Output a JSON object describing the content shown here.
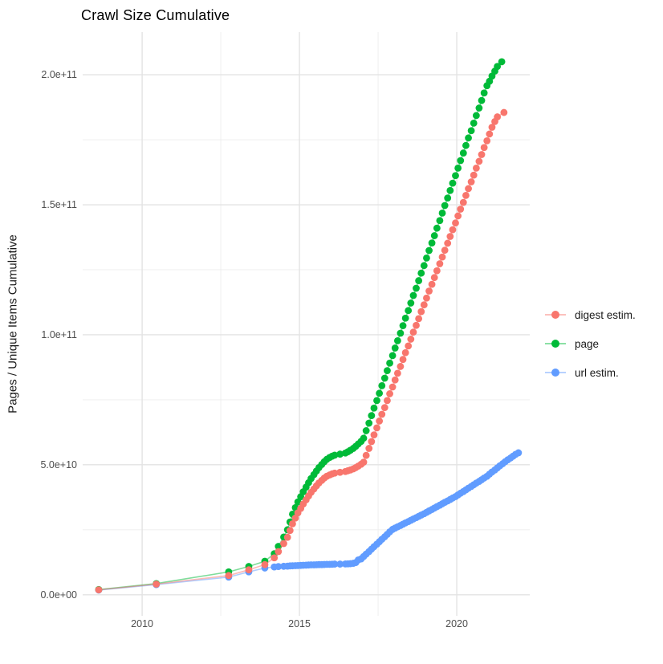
{
  "chart_data": {
    "type": "line",
    "title": "Crawl Size Cumulative",
    "xlabel": "",
    "ylabel": "Pages / Unique Items Cumulative",
    "legend_position": "right",
    "grid": "on",
    "background": "#ffffff",
    "gridline_major_color": "#e3e3e3",
    "gridline_minor_color": "#ededed",
    "axis_text_color": "#4d4d4d",
    "value_unit": "billions (1e9)",
    "xlim": [
      2008.11,
      2022.32
    ],
    "ylim_billions": [
      -8.1,
      216.4
    ],
    "x_ticks": [
      {
        "value": 2010,
        "label": "2010"
      },
      {
        "value": 2015,
        "label": "2015"
      },
      {
        "value": 2020,
        "label": "2020"
      }
    ],
    "x_minor_ticks": [
      2012.5,
      2017.5
    ],
    "y_ticks": [
      {
        "value": 0,
        "label": "0.0e+00"
      },
      {
        "value": 50,
        "label": "5.0e+10"
      },
      {
        "value": 100,
        "label": "1.0e+11"
      },
      {
        "value": 150,
        "label": "1.5e+11"
      },
      {
        "value": 200,
        "label": "2.0e+11"
      }
    ],
    "y_minor_ticks": [
      25,
      75,
      125,
      175
    ],
    "series": [
      {
        "name": "digest estim.",
        "color": "#F8766D",
        "points": [
          [
            2008.62,
            1.9
          ],
          [
            2010.45,
            4.1
          ],
          [
            2012.75,
            7.4
          ],
          [
            2013.39,
            9.6
          ],
          [
            2013.9,
            11.6
          ],
          [
            2014.2,
            14.2
          ],
          [
            2014.33,
            16.6
          ],
          [
            2014.5,
            19.7
          ],
          [
            2014.62,
            22.1
          ],
          [
            2014.7,
            24.7
          ],
          [
            2014.78,
            27.3
          ],
          [
            2014.87,
            29.5
          ],
          [
            2014.95,
            31.5
          ],
          [
            2015.04,
            33.2
          ],
          [
            2015.12,
            34.9
          ],
          [
            2015.21,
            36.5
          ],
          [
            2015.29,
            38.0
          ],
          [
            2015.37,
            39.4
          ],
          [
            2015.46,
            40.7
          ],
          [
            2015.54,
            41.9
          ],
          [
            2015.62,
            43.0
          ],
          [
            2015.71,
            44.0
          ],
          [
            2015.79,
            44.9
          ],
          [
            2015.87,
            45.6
          ],
          [
            2015.96,
            46.1
          ],
          [
            2016.04,
            46.5
          ],
          [
            2016.12,
            46.8
          ],
          [
            2016.29,
            47.1
          ],
          [
            2016.46,
            47.4
          ],
          [
            2016.54,
            47.7
          ],
          [
            2016.62,
            48.0
          ],
          [
            2016.71,
            48.4
          ],
          [
            2016.79,
            48.9
          ],
          [
            2016.87,
            49.5
          ],
          [
            2016.96,
            50.2
          ],
          [
            2017.04,
            51.0
          ],
          [
            2017.12,
            53.6
          ],
          [
            2017.21,
            56.3
          ],
          [
            2017.29,
            58.9
          ],
          [
            2017.37,
            61.5
          ],
          [
            2017.46,
            64.2
          ],
          [
            2017.54,
            66.8
          ],
          [
            2017.62,
            69.4
          ],
          [
            2017.71,
            72.0
          ],
          [
            2017.79,
            74.7
          ],
          [
            2017.87,
            77.3
          ],
          [
            2017.96,
            79.9
          ],
          [
            2018.04,
            82.6
          ],
          [
            2018.12,
            85.2
          ],
          [
            2018.21,
            87.8
          ],
          [
            2018.29,
            90.5
          ],
          [
            2018.37,
            93.1
          ],
          [
            2018.46,
            95.7
          ],
          [
            2018.54,
            98.3
          ],
          [
            2018.62,
            101.0
          ],
          [
            2018.71,
            103.6
          ],
          [
            2018.79,
            106.2
          ],
          [
            2018.87,
            108.9
          ],
          [
            2018.96,
            111.5
          ],
          [
            2019.04,
            114.1
          ],
          [
            2019.12,
            116.8
          ],
          [
            2019.21,
            119.4
          ],
          [
            2019.29,
            122.0
          ],
          [
            2019.37,
            124.6
          ],
          [
            2019.46,
            127.3
          ],
          [
            2019.54,
            129.9
          ],
          [
            2019.62,
            132.5
          ],
          [
            2019.71,
            135.2
          ],
          [
            2019.79,
            137.8
          ],
          [
            2019.87,
            140.4
          ],
          [
            2019.96,
            143.0
          ],
          [
            2020.04,
            145.7
          ],
          [
            2020.12,
            148.3
          ],
          [
            2020.21,
            150.9
          ],
          [
            2020.29,
            153.6
          ],
          [
            2020.37,
            156.2
          ],
          [
            2020.46,
            158.8
          ],
          [
            2020.54,
            161.4
          ],
          [
            2020.62,
            164.1
          ],
          [
            2020.71,
            166.7
          ],
          [
            2020.79,
            169.3
          ],
          [
            2020.87,
            172.0
          ],
          [
            2020.96,
            174.6
          ],
          [
            2021.04,
            177.2
          ],
          [
            2021.12,
            179.8
          ],
          [
            2021.21,
            182.0
          ],
          [
            2021.29,
            183.8
          ],
          [
            2021.5,
            185.5
          ]
        ]
      },
      {
        "name": "page",
        "color": "#00BA38",
        "points": [
          [
            2008.62,
            2.0
          ],
          [
            2010.45,
            4.3
          ],
          [
            2012.75,
            8.8
          ],
          [
            2013.39,
            10.9
          ],
          [
            2013.9,
            12.9
          ],
          [
            2014.2,
            15.8
          ],
          [
            2014.33,
            18.6
          ],
          [
            2014.5,
            22.2
          ],
          [
            2014.62,
            25.0
          ],
          [
            2014.7,
            28.0
          ],
          [
            2014.78,
            31.0
          ],
          [
            2014.87,
            33.5
          ],
          [
            2014.95,
            35.7
          ],
          [
            2015.04,
            37.7
          ],
          [
            2015.12,
            39.6
          ],
          [
            2015.21,
            41.4
          ],
          [
            2015.29,
            43.1
          ],
          [
            2015.37,
            44.7
          ],
          [
            2015.46,
            46.2
          ],
          [
            2015.54,
            47.6
          ],
          [
            2015.62,
            48.9
          ],
          [
            2015.71,
            50.1
          ],
          [
            2015.79,
            51.2
          ],
          [
            2015.87,
            52.1
          ],
          [
            2015.96,
            52.8
          ],
          [
            2016.04,
            53.3
          ],
          [
            2016.12,
            53.7
          ],
          [
            2016.29,
            54.1
          ],
          [
            2016.46,
            54.5
          ],
          [
            2016.54,
            55.0
          ],
          [
            2016.62,
            55.6
          ],
          [
            2016.71,
            56.3
          ],
          [
            2016.79,
            57.1
          ],
          [
            2016.87,
            58.0
          ],
          [
            2016.96,
            59.0
          ],
          [
            2017.04,
            60.2
          ],
          [
            2017.12,
            63.1
          ],
          [
            2017.21,
            66.0
          ],
          [
            2017.29,
            68.9
          ],
          [
            2017.37,
            71.8
          ],
          [
            2017.46,
            74.7
          ],
          [
            2017.54,
            77.5
          ],
          [
            2017.62,
            80.4
          ],
          [
            2017.71,
            83.3
          ],
          [
            2017.79,
            86.2
          ],
          [
            2017.87,
            89.1
          ],
          [
            2017.96,
            92.0
          ],
          [
            2018.04,
            94.9
          ],
          [
            2018.12,
            97.7
          ],
          [
            2018.21,
            100.6
          ],
          [
            2018.29,
            103.5
          ],
          [
            2018.37,
            106.4
          ],
          [
            2018.46,
            109.3
          ],
          [
            2018.54,
            112.2
          ],
          [
            2018.62,
            115.1
          ],
          [
            2018.71,
            117.9
          ],
          [
            2018.79,
            120.8
          ],
          [
            2018.87,
            123.7
          ],
          [
            2018.96,
            126.6
          ],
          [
            2019.04,
            129.5
          ],
          [
            2019.12,
            132.4
          ],
          [
            2019.21,
            135.3
          ],
          [
            2019.29,
            138.1
          ],
          [
            2019.37,
            141.0
          ],
          [
            2019.46,
            143.9
          ],
          [
            2019.54,
            146.8
          ],
          [
            2019.62,
            149.7
          ],
          [
            2019.71,
            152.6
          ],
          [
            2019.79,
            155.5
          ],
          [
            2019.87,
            158.3
          ],
          [
            2019.96,
            161.2
          ],
          [
            2020.04,
            164.1
          ],
          [
            2020.12,
            167.0
          ],
          [
            2020.21,
            169.9
          ],
          [
            2020.29,
            172.8
          ],
          [
            2020.37,
            175.7
          ],
          [
            2020.46,
            178.5
          ],
          [
            2020.54,
            181.4
          ],
          [
            2020.62,
            184.3
          ],
          [
            2020.71,
            187.2
          ],
          [
            2020.79,
            190.1
          ],
          [
            2020.87,
            193.0
          ],
          [
            2020.96,
            195.8
          ],
          [
            2021.04,
            197.5
          ],
          [
            2021.12,
            199.5
          ],
          [
            2021.21,
            201.4
          ],
          [
            2021.29,
            203.2
          ],
          [
            2021.43,
            205.0
          ]
        ]
      },
      {
        "name": "url estim.",
        "color": "#619CFF",
        "points": [
          [
            2008.62,
            1.8
          ],
          [
            2010.45,
            3.9
          ],
          [
            2012.75,
            6.8
          ],
          [
            2013.39,
            8.8
          ],
          [
            2013.9,
            10.3
          ],
          [
            2014.2,
            10.7
          ],
          [
            2014.33,
            10.85
          ],
          [
            2014.5,
            10.95
          ],
          [
            2014.62,
            11.0
          ],
          [
            2014.7,
            11.1
          ],
          [
            2014.78,
            11.15
          ],
          [
            2014.87,
            11.2
          ],
          [
            2014.95,
            11.25
          ],
          [
            2015.04,
            11.3
          ],
          [
            2015.12,
            11.35
          ],
          [
            2015.21,
            11.4
          ],
          [
            2015.29,
            11.45
          ],
          [
            2015.37,
            11.5
          ],
          [
            2015.46,
            11.5
          ],
          [
            2015.54,
            11.55
          ],
          [
            2015.62,
            11.6
          ],
          [
            2015.71,
            11.6
          ],
          [
            2015.79,
            11.65
          ],
          [
            2015.87,
            11.7
          ],
          [
            2015.96,
            11.7
          ],
          [
            2016.04,
            11.75
          ],
          [
            2016.12,
            11.8
          ],
          [
            2016.29,
            11.8
          ],
          [
            2016.46,
            11.85
          ],
          [
            2016.54,
            11.9
          ],
          [
            2016.62,
            11.95
          ],
          [
            2016.71,
            12.1
          ],
          [
            2016.79,
            12.4
          ],
          [
            2016.87,
            13.4
          ],
          [
            2016.96,
            13.8
          ],
          [
            2017.04,
            14.7
          ],
          [
            2017.12,
            15.65
          ],
          [
            2017.21,
            16.6
          ],
          [
            2017.29,
            17.55
          ],
          [
            2017.37,
            18.5
          ],
          [
            2017.46,
            19.45
          ],
          [
            2017.54,
            20.4
          ],
          [
            2017.62,
            21.35
          ],
          [
            2017.71,
            22.3
          ],
          [
            2017.79,
            23.25
          ],
          [
            2017.87,
            24.2
          ],
          [
            2017.96,
            25.15
          ],
          [
            2018.04,
            25.65
          ],
          [
            2018.12,
            26.15
          ],
          [
            2018.21,
            26.65
          ],
          [
            2018.29,
            27.15
          ],
          [
            2018.37,
            27.65
          ],
          [
            2018.46,
            28.15
          ],
          [
            2018.54,
            28.65
          ],
          [
            2018.62,
            29.15
          ],
          [
            2018.71,
            29.65
          ],
          [
            2018.79,
            30.15
          ],
          [
            2018.87,
            30.65
          ],
          [
            2018.96,
            31.15
          ],
          [
            2019.04,
            31.7
          ],
          [
            2019.12,
            32.25
          ],
          [
            2019.21,
            32.8
          ],
          [
            2019.29,
            33.35
          ],
          [
            2019.37,
            33.9
          ],
          [
            2019.46,
            34.45
          ],
          [
            2019.54,
            35.0
          ],
          [
            2019.62,
            35.55
          ],
          [
            2019.71,
            36.1
          ],
          [
            2019.79,
            36.65
          ],
          [
            2019.87,
            37.2
          ],
          [
            2019.96,
            37.75
          ],
          [
            2020.04,
            38.4
          ],
          [
            2020.12,
            39.05
          ],
          [
            2020.21,
            39.7
          ],
          [
            2020.29,
            40.35
          ],
          [
            2020.37,
            41.0
          ],
          [
            2020.46,
            41.65
          ],
          [
            2020.54,
            42.3
          ],
          [
            2020.62,
            42.95
          ],
          [
            2020.71,
            43.6
          ],
          [
            2020.79,
            44.25
          ],
          [
            2020.87,
            44.9
          ],
          [
            2020.96,
            45.55
          ],
          [
            2021.04,
            46.4
          ],
          [
            2021.12,
            47.2
          ],
          [
            2021.21,
            48.0
          ],
          [
            2021.29,
            48.8
          ],
          [
            2021.37,
            49.6
          ],
          [
            2021.46,
            50.4
          ],
          [
            2021.54,
            51.2
          ],
          [
            2021.62,
            51.9
          ],
          [
            2021.71,
            52.6
          ],
          [
            2021.79,
            53.3
          ],
          [
            2021.87,
            54.0
          ],
          [
            2021.96,
            54.6
          ]
        ]
      }
    ]
  }
}
